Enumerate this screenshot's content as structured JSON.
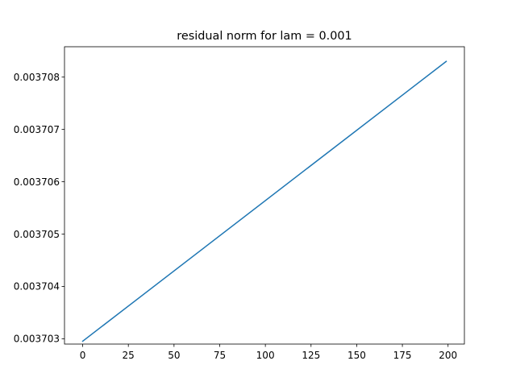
{
  "chart_data": {
    "type": "line",
    "title": "residual norm for lam = 0.001",
    "xlabel": "",
    "ylabel": "",
    "xlim": [
      -9.95,
      208.95
    ],
    "ylim": [
      0.0037029,
      0.00370858
    ],
    "x_ticks": [
      0,
      25,
      50,
      75,
      100,
      125,
      150,
      175,
      200
    ],
    "x_tick_labels": [
      "0",
      "25",
      "50",
      "75",
      "100",
      "125",
      "150",
      "175",
      "200"
    ],
    "y_ticks": [
      0.003703,
      0.003704,
      0.003705,
      0.003706,
      0.003707,
      0.003708
    ],
    "y_tick_labels": [
      "0.003703",
      "0.003704",
      "0.003705",
      "0.003706",
      "0.003707",
      "0.003708"
    ],
    "grid": false,
    "legend": "none",
    "series": [
      {
        "color": "#1f77b4",
        "x": [
          0,
          199
        ],
        "y": [
          0.0037029545,
          0.0037083
        ]
      }
    ]
  }
}
